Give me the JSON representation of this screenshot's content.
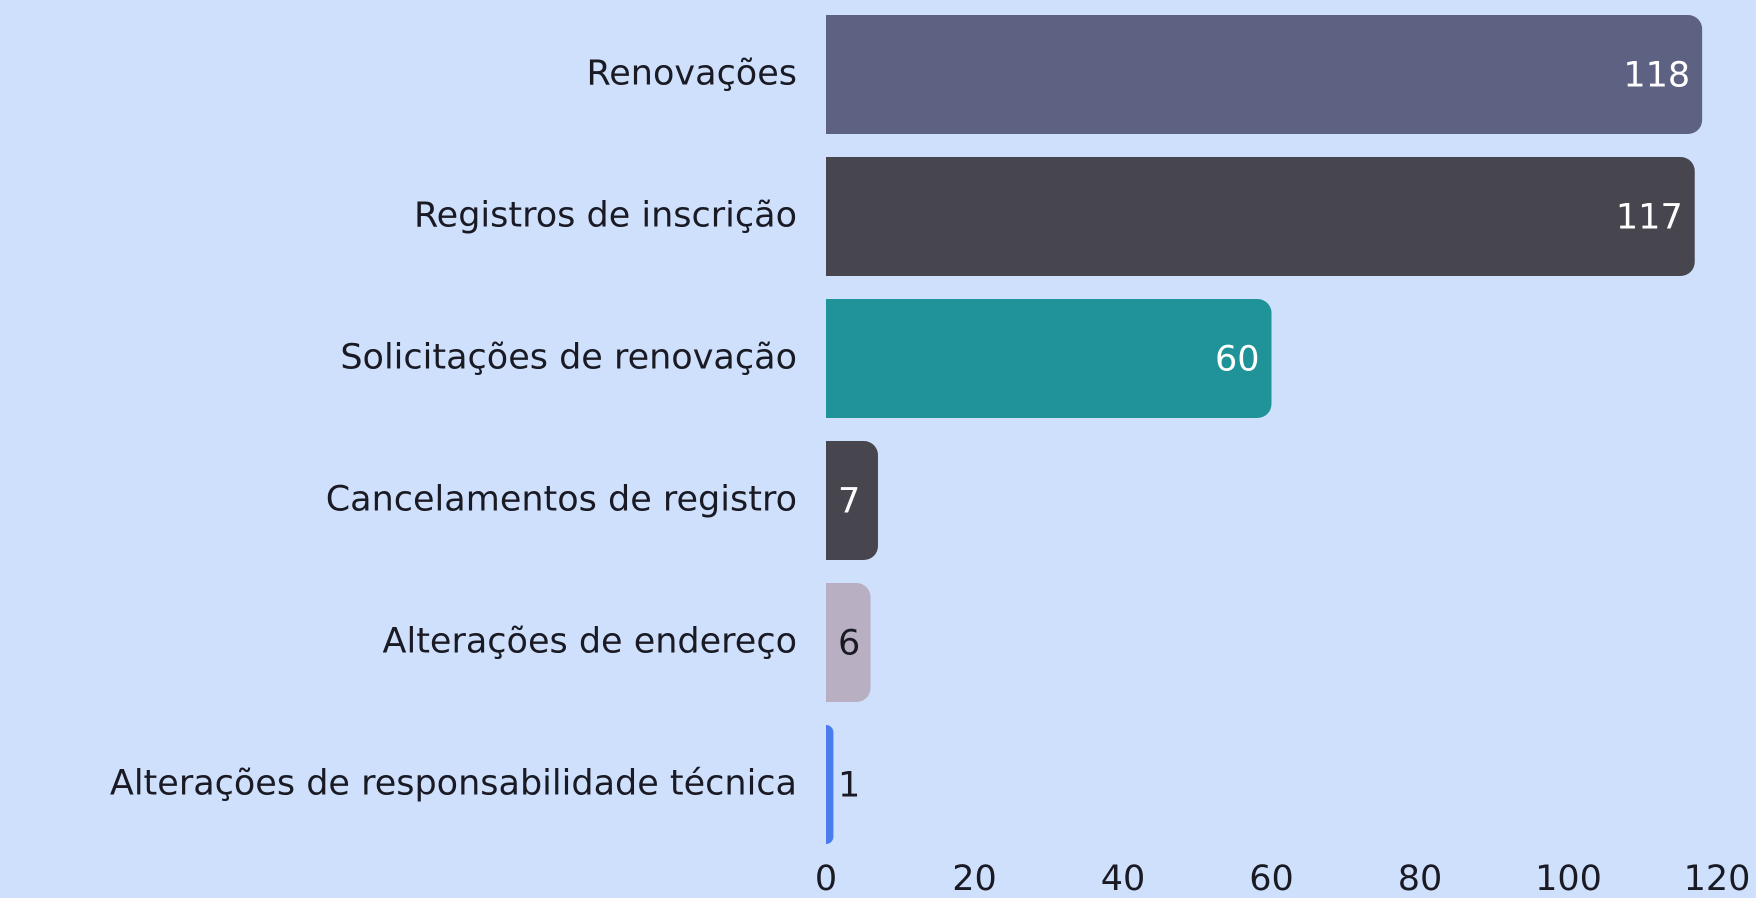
{
  "chart_data": {
    "type": "hbar",
    "categories": [
      "Renovações",
      "Registros de inscrição",
      "Solicitações de renovação",
      "Cancelamentos de registro",
      "Alterações de endereço",
      "Alterações de responsabilidade técnica"
    ],
    "values": [
      118,
      117,
      60,
      7,
      6,
      1
    ],
    "colors": [
      "#5d6182",
      "#47464e",
      "#1f9397",
      "#47464e",
      "#b9afc2",
      "#4a7cf0"
    ],
    "xlim": [
      0,
      120
    ],
    "xticks": [
      0,
      20,
      40,
      60,
      80,
      100,
      120
    ],
    "grid": false
  }
}
